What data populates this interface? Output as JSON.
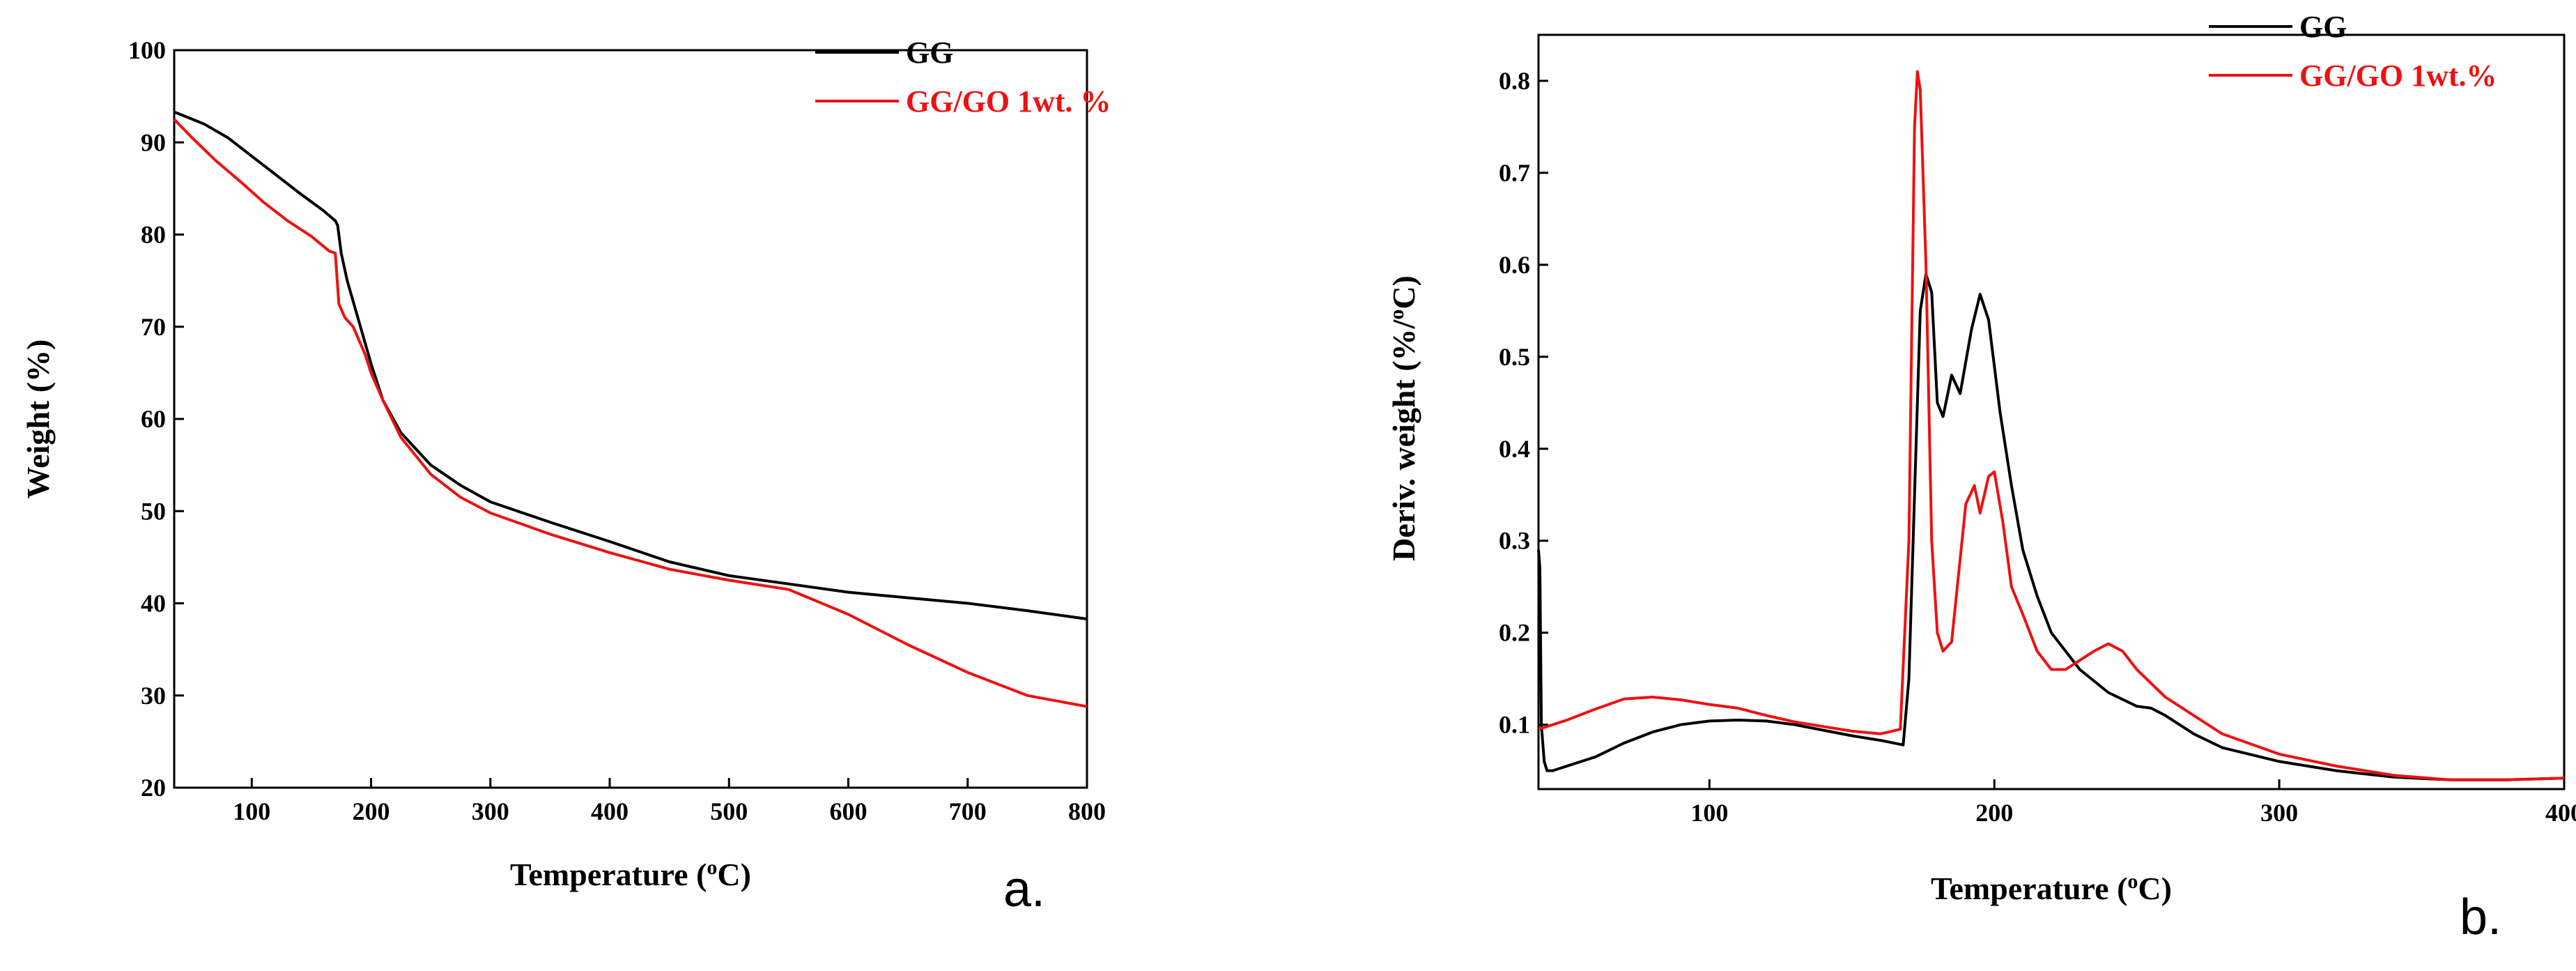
{
  "colors": {
    "gg": "#000000",
    "gggo": "#ee1111"
  },
  "chart_data": [
    {
      "type": "line",
      "panel_label": "a.",
      "xlabel_main": "Temperature (",
      "xlabel_sup": "o",
      "xlabel_end": "C)",
      "ylabel": "Weight (%)",
      "xlim": [
        35,
        800
      ],
      "ylim": [
        20,
        100
      ],
      "xticks": [
        100,
        200,
        300,
        400,
        500,
        600,
        700,
        800
      ],
      "yticks": [
        20,
        30,
        40,
        50,
        60,
        70,
        80,
        90,
        100
      ],
      "legend_position": "top-right",
      "series": [
        {
          "name": "GG",
          "color": "#000000",
          "x": [
            35,
            60,
            80,
            100,
            120,
            140,
            160,
            170,
            172,
            175,
            180,
            190,
            200,
            210,
            225,
            250,
            275,
            300,
            350,
            400,
            450,
            500,
            550,
            600,
            650,
            700,
            750,
            800
          ],
          "y": [
            93.3,
            92.0,
            90.5,
            88.5,
            86.5,
            84.5,
            82.6,
            81.5,
            81.0,
            78.0,
            75.0,
            70.5,
            66.0,
            62.0,
            58.5,
            55.0,
            52.8,
            51.0,
            48.8,
            46.7,
            44.5,
            43.0,
            42.1,
            41.2,
            40.6,
            40.0,
            39.2,
            38.3
          ]
        },
        {
          "name": "GG/GO 1wt. %",
          "color": "#ee1111",
          "x": [
            35,
            50,
            70,
            90,
            110,
            130,
            150,
            165,
            170,
            173,
            178,
            185,
            190,
            195,
            200,
            210,
            225,
            250,
            275,
            300,
            350,
            400,
            450,
            500,
            550,
            600,
            650,
            700,
            750,
            800
          ],
          "y": [
            92.5,
            90.5,
            88.0,
            85.8,
            83.5,
            81.5,
            79.8,
            78.2,
            78.0,
            72.5,
            71.0,
            70.0,
            68.5,
            67.0,
            65.0,
            62.0,
            58.0,
            54.0,
            51.5,
            49.8,
            47.5,
            45.5,
            43.7,
            42.5,
            41.5,
            38.8,
            35.5,
            32.5,
            30.0,
            28.8
          ]
        }
      ]
    },
    {
      "type": "line",
      "panel_label": "b.",
      "xlabel_main": "Temperature (",
      "xlabel_sup": "o",
      "xlabel_end": "C)",
      "ylabel_main": "Deriv. weight (%/",
      "ylabel_sup": "o",
      "ylabel_end": "C)",
      "xlim": [
        40,
        400
      ],
      "ylim": [
        0.03,
        0.85
      ],
      "xticks": [
        100,
        200,
        300,
        400
      ],
      "yticks": [
        0.1,
        0.2,
        0.3,
        0.4,
        0.5,
        0.6,
        0.7,
        0.8
      ],
      "legend_position": "top-right",
      "series": [
        {
          "name": "GG",
          "color": "#000000",
          "x": [
            40,
            40.5,
            41,
            42,
            43,
            45,
            50,
            60,
            70,
            80,
            90,
            100,
            110,
            120,
            130,
            140,
            150,
            160,
            168,
            170,
            172,
            174,
            176,
            178,
            180,
            182,
            185,
            188,
            192,
            195,
            198,
            202,
            206,
            210,
            215,
            220,
            230,
            240,
            250,
            255,
            260,
            270,
            280,
            300,
            320,
            340,
            360,
            380,
            400
          ],
          "y": [
            0.29,
            0.27,
            0.1,
            0.06,
            0.05,
            0.05,
            0.055,
            0.065,
            0.08,
            0.092,
            0.1,
            0.104,
            0.105,
            0.104,
            0.1,
            0.094,
            0.088,
            0.083,
            0.078,
            0.15,
            0.35,
            0.55,
            0.59,
            0.57,
            0.45,
            0.435,
            0.48,
            0.46,
            0.53,
            0.568,
            0.54,
            0.44,
            0.36,
            0.29,
            0.24,
            0.2,
            0.16,
            0.135,
            0.12,
            0.118,
            0.11,
            0.09,
            0.075,
            0.06,
            0.05,
            0.043,
            0.04,
            0.04,
            0.042
          ]
        },
        {
          "name": "GG/GO 1wt.%",
          "color": "#ee1111",
          "x": [
            40,
            45,
            50,
            60,
            70,
            80,
            90,
            100,
            110,
            120,
            130,
            140,
            150,
            160,
            167,
            170,
            172,
            173,
            174,
            176,
            178,
            180,
            182,
            185,
            190,
            193,
            195,
            198,
            200,
            203,
            206,
            210,
            215,
            220,
            225,
            230,
            235,
            240,
            245,
            250,
            260,
            270,
            280,
            300,
            320,
            340,
            360,
            380,
            400
          ],
          "y": [
            0.095,
            0.1,
            0.105,
            0.117,
            0.128,
            0.13,
            0.127,
            0.122,
            0.118,
            0.11,
            0.103,
            0.098,
            0.093,
            0.09,
            0.095,
            0.3,
            0.75,
            0.81,
            0.79,
            0.6,
            0.3,
            0.2,
            0.18,
            0.19,
            0.34,
            0.36,
            0.33,
            0.37,
            0.375,
            0.32,
            0.25,
            0.22,
            0.18,
            0.16,
            0.16,
            0.17,
            0.18,
            0.188,
            0.18,
            0.16,
            0.13,
            0.11,
            0.09,
            0.068,
            0.055,
            0.045,
            0.04,
            0.04,
            0.042
          ]
        }
      ]
    }
  ]
}
